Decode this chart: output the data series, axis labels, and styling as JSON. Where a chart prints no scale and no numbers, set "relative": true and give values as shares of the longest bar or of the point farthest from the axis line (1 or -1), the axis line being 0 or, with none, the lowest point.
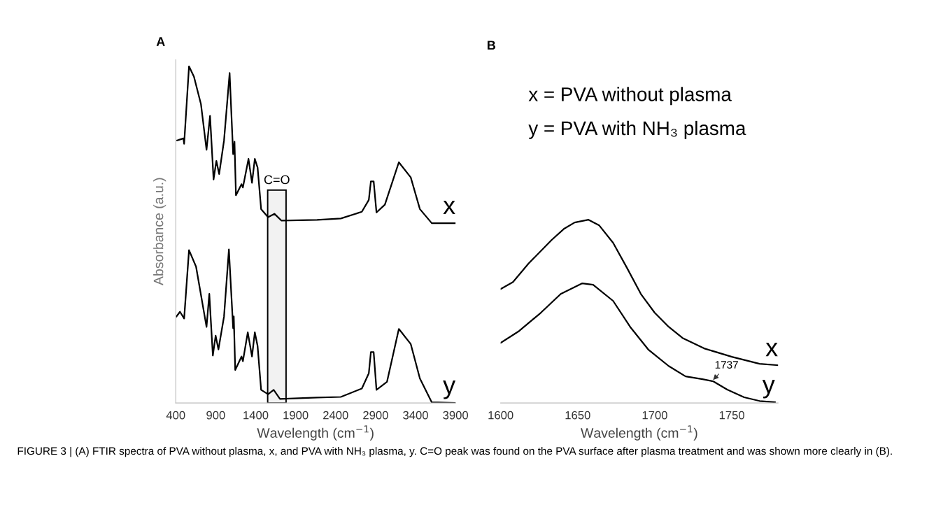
{
  "chart_data": [
    {
      "type": "line",
      "title": "A",
      "ylabel": "Absorbance (a.u.)",
      "xlabel": "Wavelength (cm$^{−1}$)",
      "relative": true,
      "legend": false,
      "grid": false,
      "xlim": [
        400,
        3900
      ],
      "xticks": [
        400,
        900,
        1400,
        1900,
        2400,
        2900,
        3400,
        3900
      ],
      "bands": [
        {
          "axis": "x",
          "from": 1550,
          "to": 1780,
          "label": "C=O",
          "color": "#000000"
        }
      ],
      "annotations": [
        "FIGURE 3 | (A) FTIR spectra of PVA without plasma, x, and PVA with NH₃ plasma, y. C=O peak was found on the PVA surface after plasma treatment and was shown more clearly in (B)."
      ],
      "series": [
        {
          "name": "x",
          "color": "#000000",
          "x": [
            418,
            496,
            505,
            566,
            628,
            715,
            785,
            829,
            873,
            908,
            943,
            1004,
            1074,
            1118,
            1135,
            1153,
            1223,
            1240,
            1310,
            1354,
            1389,
            1424,
            1468,
            1555,
            1634,
            1721,
            2168,
            2465,
            2728,
            2815,
            2841,
            2876,
            2911,
            3016,
            3191,
            3340,
            3454,
            3603,
            3900
          ],
          "values": [
            0.78,
            0.786,
            0.77,
            1.0,
            0.969,
            0.888,
            0.752,
            0.853,
            0.664,
            0.719,
            0.68,
            0.78,
            0.98,
            0.739,
            0.776,
            0.617,
            0.65,
            0.64,
            0.725,
            0.654,
            0.725,
            0.699,
            0.576,
            0.552,
            0.562,
            0.542,
            0.544,
            0.548,
            0.568,
            0.603,
            0.658,
            0.658,
            0.566,
            0.589,
            0.715,
            0.67,
            0.576,
            0.534,
            0.534
          ]
        },
        {
          "name": "y",
          "color": "#000000",
          "x": [
            409,
            453,
            505,
            566,
            654,
            785,
            820,
            864,
            899,
            934,
            1004,
            1065,
            1118,
            1126,
            1144,
            1223,
            1240,
            1301,
            1354,
            1389,
            1424,
            1468,
            1555,
            1625,
            1704,
            2168,
            2465,
            2728,
            2815,
            2841,
            2876,
            2911,
            3043,
            3191,
            3340,
            3454,
            3603,
            3900
          ],
          "values": [
            0.257,
            0.271,
            0.251,
            0.454,
            0.405,
            0.226,
            0.324,
            0.141,
            0.2,
            0.159,
            0.257,
            0.456,
            0.222,
            0.257,
            0.098,
            0.138,
            0.124,
            0.21,
            0.138,
            0.21,
            0.169,
            0.039,
            0.026,
            0.039,
            0.012,
            0.016,
            0.018,
            0.043,
            0.088,
            0.151,
            0.151,
            0.039,
            0.063,
            0.22,
            0.175,
            0.073,
            0.002,
            0.0
          ]
        }
      ]
    },
    {
      "type": "line",
      "title": "B",
      "xlabel": "Wavelength (cm$^{−1}$)",
      "relative": true,
      "legend": false,
      "grid": false,
      "xlim": [
        1600,
        1780
      ],
      "xticks": [
        1600,
        1650,
        1700,
        1750
      ],
      "annotations": [
        "x = PVA without plasma",
        "y = PVA with NH₃ plasma",
        {
          "text": "1737",
          "x": 1737,
          "y": 0.118
        }
      ],
      "series": [
        {
          "name": "x",
          "color": "#000000",
          "x": [
            1600,
            1608,
            1618,
            1633,
            1641,
            1648,
            1657,
            1664,
            1673,
            1682,
            1691,
            1700,
            1709,
            1718,
            1732,
            1750,
            1768,
            1780
          ],
          "values": [
            0.622,
            0.66,
            0.76,
            0.889,
            0.95,
            0.985,
            1.0,
            0.969,
            0.874,
            0.737,
            0.595,
            0.492,
            0.416,
            0.355,
            0.298,
            0.252,
            0.214,
            0.206
          ]
        },
        {
          "name": "y",
          "color": "#000000",
          "x": [
            1600,
            1612,
            1626,
            1639,
            1653,
            1660,
            1673,
            1684,
            1696,
            1709,
            1720,
            1731,
            1738,
            1747,
            1758,
            1768,
            1778
          ],
          "values": [
            0.328,
            0.393,
            0.492,
            0.595,
            0.653,
            0.645,
            0.557,
            0.416,
            0.29,
            0.202,
            0.145,
            0.13,
            0.118,
            0.073,
            0.031,
            0.011,
            0.004
          ]
        }
      ]
    }
  ]
}
